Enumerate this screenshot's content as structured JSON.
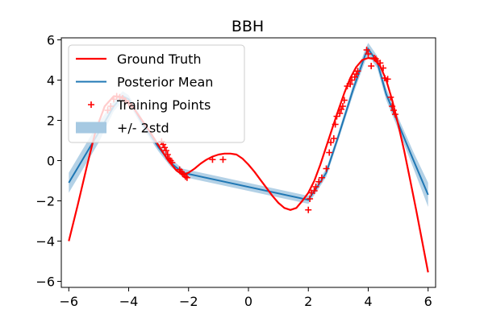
{
  "chart_data": {
    "type": "line",
    "title": "BBH",
    "xlabel": "",
    "ylabel": "",
    "xlim": [
      -6.25,
      6.25
    ],
    "ylim": [
      -6.3,
      6.1
    ],
    "xticks": [
      -6,
      -4,
      -2,
      0,
      2,
      4,
      6
    ],
    "yticks": [
      -6,
      -4,
      -2,
      0,
      2,
      4,
      6
    ],
    "xtick_labels": [
      "−6",
      "−4",
      "−2",
      "0",
      "2",
      "4",
      "6"
    ],
    "ytick_labels": [
      "−6",
      "−4",
      "−2",
      "0",
      "2",
      "4",
      "6"
    ],
    "grid": false,
    "legend_position": "upper-left",
    "colors": {
      "ground_truth": "#ff0000",
      "posterior_mean": "#1f77b4",
      "band": "#a6c9e2",
      "training": "#ff0000"
    },
    "series": [
      {
        "name": "Ground Truth",
        "kind": "line",
        "x": [
          -6,
          -5.7,
          -5.4,
          -5.1,
          -4.8,
          -4.5,
          -4.2,
          -3.9,
          -3.6,
          -3.3,
          -3.0,
          -2.7,
          -2.4,
          -2.2,
          -2.0,
          -1.8,
          -1.6,
          -1.4,
          -1.2,
          -1.0,
          -0.8,
          -0.6,
          -0.4,
          -0.2,
          0.0,
          0.2,
          0.4,
          0.6,
          0.8,
          1.0,
          1.2,
          1.4,
          1.6,
          1.8,
          2.0,
          2.2,
          2.4,
          2.6,
          2.8,
          3.0,
          3.2,
          3.4,
          3.6,
          3.8,
          4.0,
          4.2,
          4.4,
          4.6,
          4.8,
          5.0,
          5.2,
          5.4,
          5.6,
          5.8,
          6.0
        ],
        "y": [
          -4.0,
          -2.2,
          -0.3,
          1.5,
          2.7,
          3.2,
          3.15,
          2.75,
          2.1,
          1.45,
          0.75,
          0.05,
          -0.5,
          -0.7,
          -0.6,
          -0.4,
          -0.15,
          0.05,
          0.2,
          0.3,
          0.35,
          0.35,
          0.3,
          0.1,
          -0.2,
          -0.55,
          -0.95,
          -1.35,
          -1.75,
          -2.1,
          -2.35,
          -2.45,
          -2.35,
          -2.0,
          -1.6,
          -1.0,
          -0.2,
          0.7,
          1.6,
          2.5,
          3.35,
          4.1,
          4.65,
          5.0,
          5.1,
          5.05,
          4.7,
          4.0,
          3.0,
          1.8,
          0.5,
          -0.95,
          -2.45,
          -4.0,
          -5.55
        ]
      },
      {
        "name": "Posterior Mean",
        "kind": "line",
        "x": [
          -6,
          -5.0,
          -4.5,
          -4.2,
          -4.0,
          -3.5,
          -3.0,
          -2.6,
          -2.2,
          2.0,
          2.3,
          2.6,
          3.0,
          3.5,
          3.9,
          4.0,
          4.3,
          4.6,
          5.0,
          5.5,
          6.0
        ],
        "y": [
          -1.1,
          1.4,
          2.7,
          3.2,
          3.05,
          1.75,
          0.65,
          -0.1,
          -0.6,
          -1.95,
          -1.3,
          -0.6,
          1.2,
          3.55,
          5.25,
          5.55,
          4.9,
          3.3,
          1.85,
          0.05,
          -1.7
        ]
      },
      {
        "name": "+/- 2std",
        "kind": "band",
        "x": [
          -6,
          -5.0,
          -4.5,
          -4.2,
          -4.0,
          -3.5,
          -3.0,
          -2.6,
          -2.2,
          2.0,
          2.3,
          2.6,
          3.0,
          3.5,
          3.9,
          4.0,
          4.3,
          4.6,
          5.0,
          5.5,
          6.0
        ],
        "lower": [
          -1.6,
          0.9,
          2.45,
          2.95,
          2.85,
          1.55,
          0.45,
          -0.3,
          -0.8,
          -2.15,
          -1.5,
          -0.8,
          1.0,
          3.3,
          4.95,
          5.25,
          4.6,
          3.0,
          1.55,
          -0.35,
          -2.3
        ],
        "upper": [
          -0.6,
          1.9,
          2.95,
          3.45,
          3.25,
          1.95,
          0.85,
          0.1,
          -0.4,
          -1.75,
          -1.1,
          -0.4,
          1.4,
          3.8,
          5.55,
          5.85,
          5.2,
          3.6,
          2.15,
          0.45,
          -1.1
        ]
      },
      {
        "name": "Training Points",
        "kind": "scatter",
        "x": [
          -4.6,
          -4.5,
          -4.4,
          -4.3,
          -4.2,
          -4.1,
          -4.0,
          -3.9,
          -4.7,
          -2.9,
          -2.85,
          -2.8,
          -2.75,
          -2.7,
          -2.65,
          -2.6,
          -2.55,
          -2.3,
          -2.25,
          -2.2,
          -2.15,
          -2.1,
          -2.05,
          -1.2,
          -0.85,
          2.0,
          2.05,
          2.1,
          2.2,
          2.25,
          2.35,
          2.45,
          2.6,
          2.7,
          2.75,
          2.85,
          2.9,
          2.95,
          3.05,
          3.1,
          3.15,
          3.2,
          3.3,
          3.4,
          3.45,
          3.55,
          3.6,
          3.65,
          3.95,
          4.0,
          4.1,
          4.2,
          4.25,
          4.3,
          4.4,
          4.5,
          4.55,
          4.65,
          4.75,
          4.8,
          4.85,
          4.9
        ],
        "y": [
          2.7,
          3.05,
          3.2,
          3.15,
          3.1,
          2.95,
          2.85,
          2.7,
          2.5,
          0.95,
          0.8,
          0.65,
          0.5,
          0.3,
          0.1,
          0.0,
          -0.1,
          -0.45,
          -0.55,
          -0.65,
          -0.7,
          -0.8,
          -0.85,
          0.05,
          0.05,
          -2.45,
          -1.9,
          -1.6,
          -1.5,
          -1.3,
          -1.05,
          -0.85,
          -0.4,
          0.4,
          0.9,
          1.1,
          1.8,
          2.2,
          2.35,
          2.55,
          2.7,
          3.0,
          3.7,
          3.8,
          4.0,
          4.15,
          4.3,
          4.45,
          5.5,
          5.3,
          4.7,
          5.1,
          5.05,
          4.95,
          4.85,
          4.6,
          4.1,
          4.05,
          3.15,
          2.7,
          2.5,
          2.3
        ]
      }
    ]
  }
}
